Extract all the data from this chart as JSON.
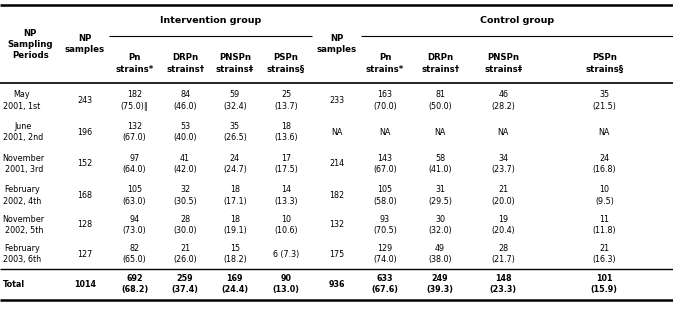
{
  "rows": [
    {
      "period": "May\n2001, 1st",
      "int_np": "243",
      "int_pn": "182\n(75.0)‖",
      "int_drpn": "84\n(46.0)",
      "int_pnspn": "59\n(32.4)",
      "int_pspn": "25\n(13.7)",
      "ctrl_np": "233",
      "ctrl_pn": "163\n(70.0)",
      "ctrl_drpn": "81\n(50.0)",
      "ctrl_pnspn": "46\n(28.2)",
      "ctrl_pspn": "35\n(21.5)"
    },
    {
      "period": "June\n2001, 2nd",
      "int_np": "196",
      "int_pn": "132\n(67.0)",
      "int_drpn": "53\n(40.0)",
      "int_pnspn": "35\n(26.5)",
      "int_pspn": "18\n(13.6)",
      "ctrl_np": "NA",
      "ctrl_pn": "NA",
      "ctrl_drpn": "NA",
      "ctrl_pnspn": "NA",
      "ctrl_pspn": "NA"
    },
    {
      "period": "November\n2001, 3rd",
      "int_np": "152",
      "int_pn": "97\n(64.0)",
      "int_drpn": "41\n(42.0)",
      "int_pnspn": "24\n(24.7)",
      "int_pspn": "17\n(17.5)",
      "ctrl_np": "214",
      "ctrl_pn": "143\n(67.0)",
      "ctrl_drpn": "58\n(41.0)",
      "ctrl_pnspn": "34\n(23.7)",
      "ctrl_pspn": "24\n(16.8)"
    },
    {
      "period": "February\n2002, 4th",
      "int_np": "168",
      "int_pn": "105\n(63.0)",
      "int_drpn": "32\n(30.5)",
      "int_pnspn": "18\n(17.1)",
      "int_pspn": "14\n(13.3)",
      "ctrl_np": "182",
      "ctrl_pn": "105\n(58.0)",
      "ctrl_drpn": "31\n(29.5)",
      "ctrl_pnspn": "21\n(20.0)",
      "ctrl_pspn": "10\n(9.5)"
    },
    {
      "period": "November\n2002, 5th",
      "int_np": "128",
      "int_pn": "94\n(73.0)",
      "int_drpn": "28\n(30.0)",
      "int_pnspn": "18\n(19.1)",
      "int_pspn": "10\n(10.6)",
      "ctrl_np": "132",
      "ctrl_pn": "93\n(70.5)",
      "ctrl_drpn": "30\n(32.0)",
      "ctrl_pnspn": "19\n(20.4)",
      "ctrl_pspn": "11\n(11.8)"
    },
    {
      "period": "February\n2003, 6th",
      "int_np": "127",
      "int_pn": "82\n(65.0)",
      "int_drpn": "21\n(26.0)",
      "int_pnspn": "15\n(18.2)",
      "int_pspn": "6 (7.3)",
      "ctrl_np": "175",
      "ctrl_pn": "129\n(74.0)",
      "ctrl_drpn": "49\n(38.0)",
      "ctrl_pnspn": "28\n(21.7)",
      "ctrl_pspn": "21\n(16.3)"
    },
    {
      "period": "Total",
      "int_np": "1014",
      "int_pn": "692\n(68.2)",
      "int_drpn": "259\n(37.4)",
      "int_pnspn": "169\n(24.4)",
      "int_pspn": "90\n(13.0)",
      "ctrl_np": "936",
      "ctrl_pn": "633\n(67.6)",
      "ctrl_drpn": "249\n(39.3)",
      "ctrl_pnspn": "148\n(23.3)",
      "ctrl_pspn": "101\n(15.9)"
    }
  ],
  "xb": [
    0.0,
    0.09,
    0.162,
    0.238,
    0.312,
    0.386,
    0.464,
    0.536,
    0.608,
    0.7,
    0.796,
    1.0
  ],
  "fs": 5.8,
  "fs_header": 6.2,
  "fs_group": 6.8
}
